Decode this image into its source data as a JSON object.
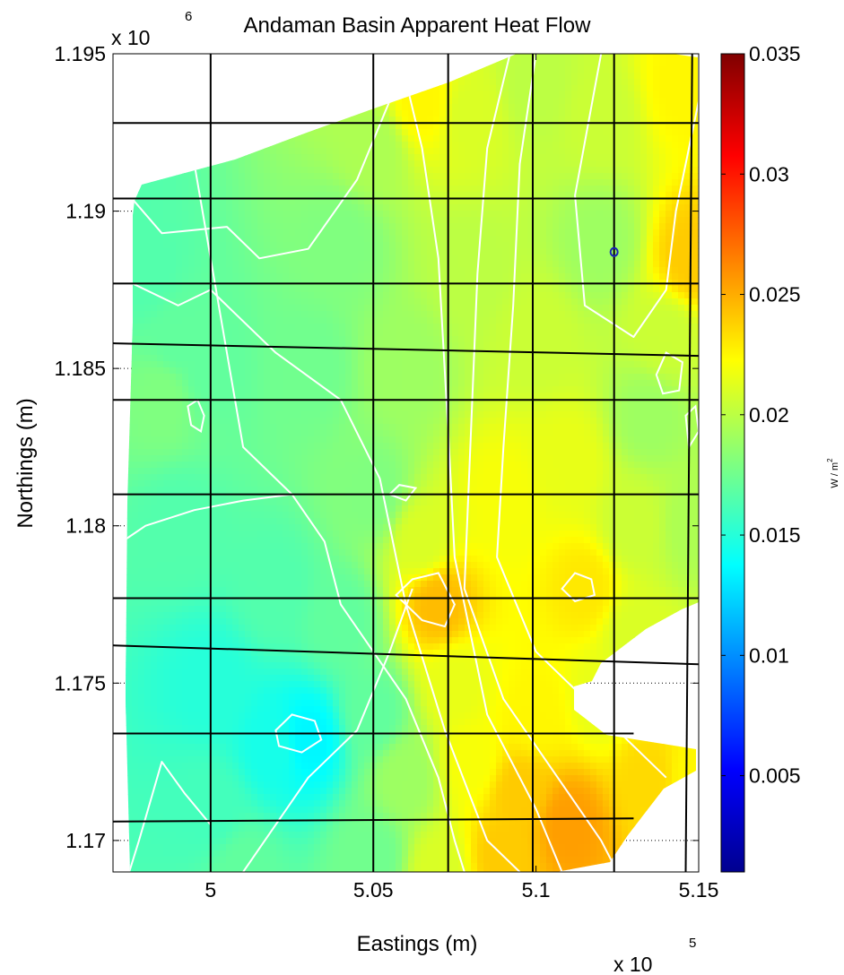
{
  "chart_data": {
    "type": "heatmap",
    "title": "Andaman Basin Apparent Heat Flow",
    "xlabel": "Eastings (m)",
    "ylabel": "Northings (m)",
    "x_exponent": "x 10",
    "x_exponent_power": "5",
    "y_exponent": "x 10",
    "y_exponent_power": "6",
    "xlim": [
      4.97,
      5.15
    ],
    "ylim": [
      1.169,
      1.195
    ],
    "x_ticks": [
      5,
      5.05,
      5.1,
      5.15
    ],
    "x_tick_labels": [
      "5",
      "5.05",
      "5.1",
      "5.15"
    ],
    "y_ticks": [
      1.17,
      1.175,
      1.18,
      1.185,
      1.19,
      1.195
    ],
    "y_tick_labels": [
      "1.17",
      "1.175",
      "1.18",
      "1.185",
      "1.19",
      "1.195"
    ],
    "grid": true,
    "colorbar": {
      "label": "W / m",
      "label_power": "2",
      "range": [
        0.001,
        0.035
      ],
      "ticks": [
        0.005,
        0.01,
        0.015,
        0.02,
        0.025,
        0.03,
        0.035
      ],
      "tick_labels": [
        "0.005",
        "0.01",
        "0.015",
        "0.02",
        "0.025",
        "0.03",
        "0.035"
      ],
      "colormap": "jet"
    },
    "field_points": [
      [
        4.97,
        1.191,
        0.0165
      ],
      [
        4.98,
        1.188,
        0.0165
      ],
      [
        4.99,
        1.186,
        0.017
      ],
      [
        5.0,
        1.185,
        0.017
      ],
      [
        4.985,
        1.184,
        0.018
      ],
      [
        4.99,
        1.18,
        0.0165
      ],
      [
        5.0,
        1.175,
        0.015
      ],
      [
        5.02,
        1.178,
        0.0165
      ],
      [
        5.02,
        1.173,
        0.0145
      ],
      [
        5.03,
        1.1732,
        0.0135
      ],
      [
        5.0,
        1.171,
        0.016
      ],
      [
        5.01,
        1.169,
        0.017
      ],
      [
        5.03,
        1.185,
        0.0175
      ],
      [
        5.04,
        1.189,
        0.018
      ],
      [
        5.05,
        1.192,
        0.0195
      ],
      [
        5.065,
        1.1935,
        0.0225
      ],
      [
        5.08,
        1.193,
        0.021
      ],
      [
        5.1,
        1.194,
        0.02
      ],
      [
        5.12,
        1.193,
        0.0205
      ],
      [
        5.145,
        1.194,
        0.0225
      ],
      [
        5.148,
        1.1885,
        0.024
      ],
      [
        5.14,
        1.186,
        0.0205
      ],
      [
        5.135,
        1.1835,
        0.019
      ],
      [
        5.12,
        1.189,
        0.019
      ],
      [
        5.1,
        1.186,
        0.0205
      ],
      [
        5.08,
        1.188,
        0.02
      ],
      [
        5.06,
        1.185,
        0.019
      ],
      [
        5.05,
        1.181,
        0.018
      ],
      [
        5.065,
        1.1795,
        0.021
      ],
      [
        5.07,
        1.1775,
        0.0245
      ],
      [
        5.075,
        1.175,
        0.0215
      ],
      [
        5.09,
        1.181,
        0.022
      ],
      [
        5.11,
        1.182,
        0.0215
      ],
      [
        5.115,
        1.178,
        0.023
      ],
      [
        5.13,
        1.18,
        0.0205
      ],
      [
        5.13,
        1.1765,
        0.021
      ],
      [
        5.12,
        1.1745,
        0.0215
      ],
      [
        5.1,
        1.174,
        0.0225
      ],
      [
        5.11,
        1.1705,
        0.0255
      ],
      [
        5.095,
        1.1715,
        0.024
      ],
      [
        5.08,
        1.1725,
        0.022
      ],
      [
        5.06,
        1.172,
        0.019
      ],
      [
        5.05,
        1.174,
        0.017
      ],
      [
        5.04,
        1.177,
        0.017
      ],
      [
        5.135,
        1.172,
        0.0235
      ],
      [
        5.148,
        1.172,
        0.0225
      ],
      [
        5.148,
        1.18,
        0.0195
      ],
      [
        5.09,
        1.1695,
        0.024
      ],
      [
        5.07,
        1.169,
        0.021
      ],
      [
        5.05,
        1.1695,
        0.0175
      ]
    ],
    "marker": {
      "x": 5.124,
      "y": 1.1887,
      "color": "#1a24b8"
    },
    "contour_lines": [
      [
        [
          4.975,
          1.1905
        ],
        [
          4.985,
          1.1893
        ],
        [
          5.005,
          1.1895
        ],
        [
          5.015,
          1.1885
        ],
        [
          5.03,
          1.1888
        ],
        [
          5.045,
          1.191
        ],
        [
          5.055,
          1.1935
        ],
        [
          5.06,
          1.195
        ]
      ],
      [
        [
          4.97,
          1.188
        ],
        [
          4.99,
          1.187
        ],
        [
          5.0,
          1.1875
        ],
        [
          5.02,
          1.1855
        ],
        [
          5.04,
          1.184
        ],
        [
          5.052,
          1.1815
        ],
        [
          5.06,
          1.1775
        ],
        [
          5.072,
          1.1735
        ],
        [
          5.085,
          1.17
        ],
        [
          5.095,
          1.169
        ]
      ],
      [
        [
          5.058,
          1.195
        ],
        [
          5.065,
          1.192
        ],
        [
          5.07,
          1.1885
        ],
        [
          5.073,
          1.183
        ],
        [
          5.075,
          1.179
        ],
        [
          5.085,
          1.174
        ],
        [
          5.1,
          1.171
        ],
        [
          5.108,
          1.169
        ]
      ],
      [
        [
          5.092,
          1.195
        ],
        [
          5.085,
          1.192
        ],
        [
          5.082,
          1.188
        ],
        [
          5.08,
          1.183
        ],
        [
          5.078,
          1.178
        ],
        [
          5.09,
          1.1745
        ],
        [
          5.11,
          1.1715
        ],
        [
          5.12,
          1.17
        ],
        [
          5.125,
          1.169
        ]
      ],
      [
        [
          5.1,
          1.195
        ],
        [
          5.095,
          1.1915
        ],
        [
          5.093,
          1.187
        ],
        [
          5.09,
          1.1825
        ],
        [
          5.088,
          1.179
        ],
        [
          5.1,
          1.176
        ],
        [
          5.12,
          1.174
        ],
        [
          5.14,
          1.172
        ]
      ],
      [
        [
          5.12,
          1.195
        ],
        [
          5.112,
          1.1905
        ],
        [
          5.115,
          1.187
        ],
        [
          5.13,
          1.186
        ],
        [
          5.14,
          1.1875
        ],
        [
          5.143,
          1.19
        ],
        [
          5.15,
          1.1935
        ]
      ],
      [
        [
          4.985,
          1.1975
        ],
        [
          5.01,
          1.1825
        ],
        [
          5.025,
          1.181
        ],
        [
          5.035,
          1.1795
        ],
        [
          5.04,
          1.1775
        ],
        [
          5.05,
          1.176
        ],
        [
          5.06,
          1.1745
        ],
        [
          5.07,
          1.172
        ],
        [
          5.075,
          1.17
        ],
        [
          5.078,
          1.169
        ]
      ],
      [
        [
          4.97,
          1.1793
        ],
        [
          4.98,
          1.18
        ],
        [
          4.995,
          1.1805
        ],
        [
          5.01,
          1.1808
        ],
        [
          5.025,
          1.181
        ]
      ],
      [
        [
          5.0,
          1.1705
        ],
        [
          4.992,
          1.1715
        ],
        [
          4.985,
          1.1725
        ],
        [
          4.978,
          1.17
        ],
        [
          4.975,
          1.169
        ]
      ],
      [
        [
          5.01,
          1.169
        ],
        [
          5.02,
          1.1705
        ],
        [
          5.03,
          1.172
        ],
        [
          5.045,
          1.1735
        ],
        [
          5.055,
          1.176
        ],
        [
          5.062,
          1.178
        ]
      ]
    ],
    "closed_contours": [
      [
        [
          5.02,
          1.1735
        ],
        [
          5.025,
          1.174
        ],
        [
          5.032,
          1.1738
        ],
        [
          5.034,
          1.1732
        ],
        [
          5.028,
          1.1728
        ],
        [
          5.021,
          1.173
        ],
        [
          5.02,
          1.1735
        ]
      ],
      [
        [
          5.057,
          1.1778
        ],
        [
          5.065,
          1.177
        ],
        [
          5.072,
          1.1768
        ],
        [
          5.075,
          1.1775
        ],
        [
          5.07,
          1.1785
        ],
        [
          5.062,
          1.1783
        ],
        [
          5.057,
          1.1778
        ]
      ],
      [
        [
          5.055,
          1.181
        ],
        [
          5.058,
          1.1813
        ],
        [
          5.063,
          1.1812
        ],
        [
          5.06,
          1.1808
        ],
        [
          5.055,
          1.181
        ]
      ],
      [
        [
          5.137,
          1.1848
        ],
        [
          5.14,
          1.1855
        ],
        [
          5.145,
          1.1852
        ],
        [
          5.144,
          1.1843
        ],
        [
          5.139,
          1.1842
        ],
        [
          5.137,
          1.1848
        ]
      ],
      [
        [
          4.993,
          1.1838
        ],
        [
          4.996,
          1.184
        ],
        [
          4.998,
          1.1835
        ],
        [
          4.997,
          1.183
        ],
        [
          4.994,
          1.1832
        ],
        [
          4.993,
          1.1838
        ]
      ],
      [
        [
          5.108,
          1.178
        ],
        [
          5.112,
          1.1785
        ],
        [
          5.117,
          1.1783
        ],
        [
          5.118,
          1.1778
        ],
        [
          5.112,
          1.1776
        ],
        [
          5.108,
          1.178
        ]
      ],
      [
        [
          5.146,
          1.1835
        ],
        [
          5.149,
          1.1838
        ],
        [
          5.15,
          1.183
        ],
        [
          5.147,
          1.1825
        ],
        [
          5.146,
          1.1835
        ]
      ]
    ],
    "survey_lines": [
      {
        "orientation": "horizontal",
        "y": 1.1928
      },
      {
        "orientation": "horizontal",
        "y": 1.1904
      },
      {
        "orientation": "horizontal",
        "y": 1.1877
      },
      {
        "orientation": "horizontal",
        "from": [
          4.97,
          1.1858
        ],
        "to": [
          5.15,
          1.1854
        ]
      },
      {
        "orientation": "horizontal",
        "y": 1.184
      },
      {
        "orientation": "horizontal",
        "y": 1.181
      },
      {
        "orientation": "horizontal",
        "y": 1.1777
      },
      {
        "orientation": "horizontal",
        "from": [
          4.97,
          1.1762
        ],
        "to": [
          5.15,
          1.1756
        ]
      },
      {
        "orientation": "horizontal",
        "from": [
          4.97,
          1.1734
        ],
        "to": [
          5.13,
          1.1734
        ]
      },
      {
        "orientation": "horizontal",
        "from": [
          4.97,
          1.1706
        ],
        "to": [
          5.13,
          1.1707
        ]
      },
      {
        "orientation": "vertical",
        "x": 5.0
      },
      {
        "orientation": "vertical",
        "x": 5.05
      },
      {
        "orientation": "vertical",
        "x": 5.073
      },
      {
        "orientation": "vertical",
        "x": 5.099
      },
      {
        "orientation": "vertical",
        "x": 5.124
      },
      {
        "orientation": "vertical",
        "from": [
          5.148,
          1.195
        ],
        "to": [
          5.146,
          1.169
        ]
      }
    ]
  }
}
